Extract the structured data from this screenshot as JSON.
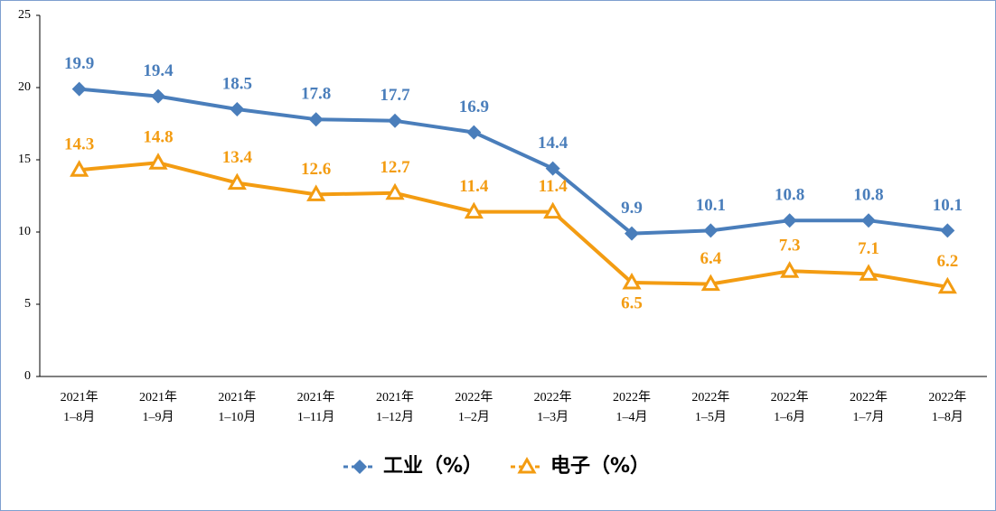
{
  "chart_data": {
    "type": "line",
    "categories": [
      "2021年\n1–8月",
      "2021年\n1–9月",
      "2021年\n1–10月",
      "2021年\n1–11月",
      "2021年\n1–12月",
      "2022年\n1–2月",
      "2022年\n1–3月",
      "2022年\n1–4月",
      "2022年\n1–5月",
      "2022年\n1–6月",
      "2022年\n1–7月",
      "2022年\n1–8月"
    ],
    "series": [
      {
        "name": "工业（%）",
        "color": "#4a7ebb",
        "marker": "diamond",
        "values": [
          19.9,
          19.4,
          18.5,
          17.8,
          17.7,
          16.9,
          14.4,
          9.9,
          10.1,
          10.8,
          10.8,
          10.1
        ]
      },
      {
        "name": "电子（%）",
        "color": "#f39c12",
        "marker": "triangle",
        "values": [
          14.3,
          14.8,
          13.4,
          12.6,
          12.7,
          11.4,
          11.4,
          6.5,
          6.4,
          7.3,
          7.1,
          6.2
        ]
      }
    ],
    "ylim": [
      0,
      25
    ],
    "yticks": [
      0,
      5,
      10,
      15,
      20,
      25
    ],
    "grid": false,
    "legend": "bottom"
  }
}
